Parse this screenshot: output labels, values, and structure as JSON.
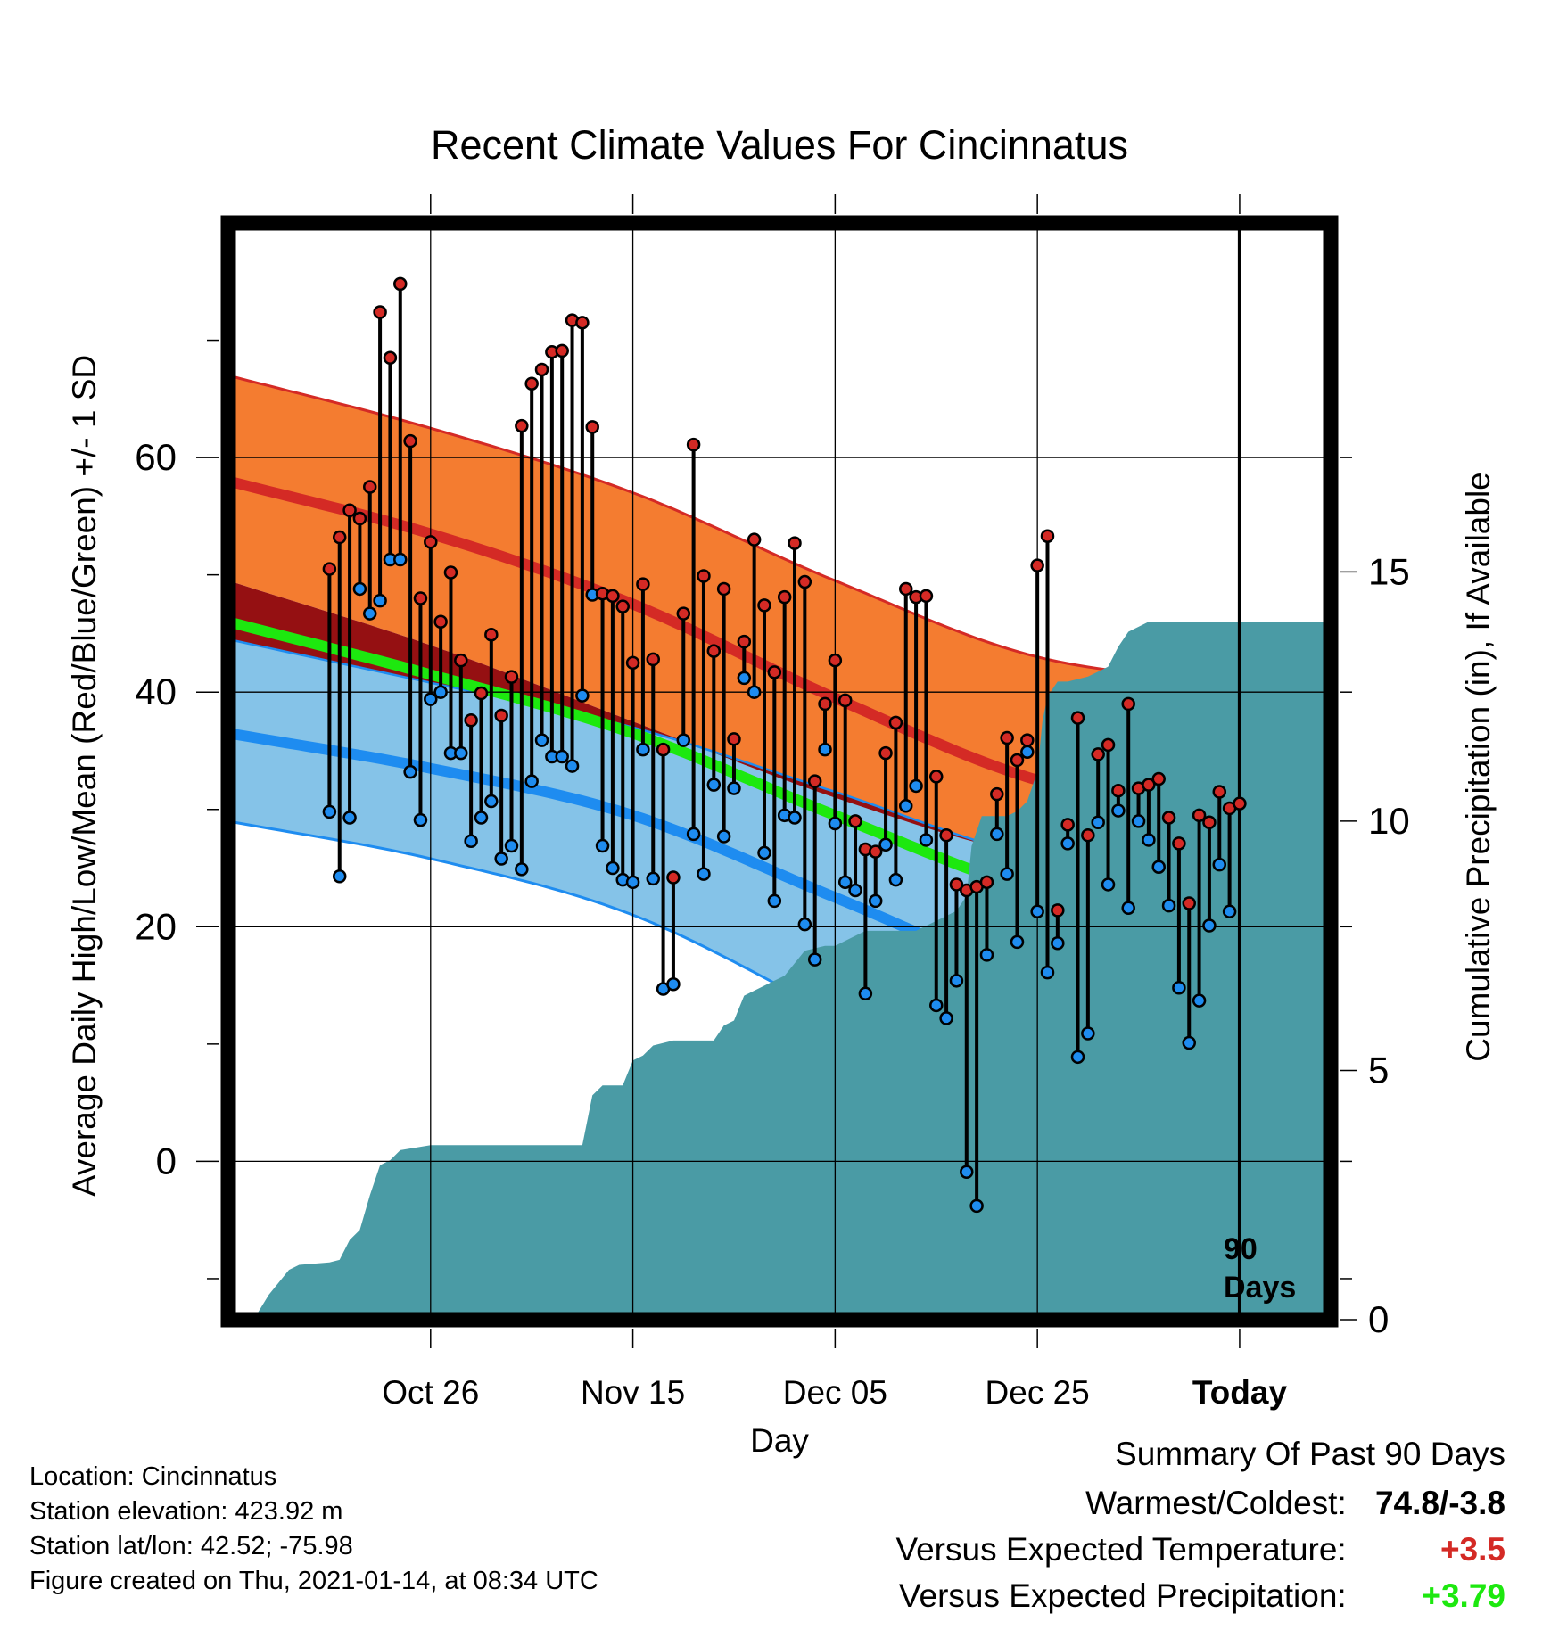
{
  "title": "Recent Climate Values For Cincinnatus",
  "xlabel": "Day",
  "ylabel_left": "Average Daily High/Low/Mean (Red/Blue/Green) +/- 1 SD",
  "ylabel_right": "Cumulative Precipitation (in), If Available",
  "today_marker": {
    "line1": "90",
    "line2": "Days"
  },
  "footer": {
    "location": "Location: Cincinnatus",
    "elevation": "Station elevation: 423.92 m",
    "latlon": "Station lat/lon: 42.52; -75.98",
    "created": "Figure created on Thu, 2021-01-14, at 08:34 UTC"
  },
  "summary": {
    "heading": "Summary Of Past 90 Days",
    "warm_cold_label": "Warmest/Coldest:",
    "warm_cold_value": "74.8/-3.8",
    "temp_label": "Versus Expected Temperature:",
    "temp_value": "+3.5",
    "precip_label": "Versus Expected Precipitation:",
    "precip_value": "+3.79"
  },
  "colors": {
    "high_band": "#f47c30",
    "high_line": "#d42a25",
    "low_band": "#85c3e8",
    "low_line": "#1e8cf0",
    "mean_line": "#1de80f",
    "overlap": "#951012",
    "precip": "#4a9ba5",
    "obs_high": "#d42a25",
    "obs_low": "#1e8cf0"
  },
  "chart_data": {
    "type": "line",
    "x_unit": "day index (0 = Oct 16, 90 = today Jan 14)",
    "xlim": [
      -10,
      99
    ],
    "ylim": [
      -13.5,
      80
    ],
    "ylim_right": [
      0,
      22
    ],
    "x_ticks": [
      {
        "day": 10,
        "label": "Oct 26"
      },
      {
        "day": 30,
        "label": "Nov 15"
      },
      {
        "day": 50,
        "label": "Dec 05"
      },
      {
        "day": 70,
        "label": "Dec 25"
      },
      {
        "day": 90,
        "label": "Today"
      }
    ],
    "y_ticks_left": [
      0,
      20,
      40,
      60
    ],
    "y_ticks_right": [
      0,
      5,
      10,
      15
    ],
    "grid": true,
    "normals": {
      "days": [
        -10,
        10,
        30,
        50,
        70,
        90,
        99
      ],
      "high_upper": [
        67,
        62.5,
        57,
        49.5,
        43,
        41,
        41.3
      ],
      "high_mean": [
        58,
        53.5,
        47.5,
        39.5,
        32.5,
        29.5,
        30
      ],
      "high_lower": [
        49.5,
        44,
        37.5,
        31,
        26,
        24.7,
        24.6
      ],
      "mean_mean": [
        46,
        41.5,
        36.5,
        29.5,
        23,
        19.8,
        19.8
      ],
      "low_upper": [
        44.5,
        40.8,
        37,
        31.5,
        26,
        24.8,
        24.8
      ],
      "low_mean": [
        36.5,
        33.5,
        29.5,
        22.5,
        15.5,
        11.7,
        11.7
      ],
      "low_lower": [
        29,
        25.8,
        21,
        12.5,
        3.5,
        -2,
        -2
      ]
    },
    "series": [
      {
        "name": "High",
        "values": [
          50.5,
          53.2,
          55.5,
          54.8,
          57.5,
          72.4,
          68.5,
          74.8,
          61.4,
          48,
          52.8,
          46,
          50.2,
          42.7,
          37.6,
          39.9,
          44.9,
          38,
          41.3,
          62.7,
          66.3,
          67.5,
          69,
          69.1,
          71.7,
          71.5,
          62.6,
          48.4,
          48.2,
          47.3,
          42.5,
          49.2,
          42.8,
          35.1,
          24.2,
          46.7,
          61.1,
          49.9,
          43.5,
          48.8,
          36,
          44.3,
          53,
          47.4,
          41.7,
          48.1,
          52.7,
          49.4,
          32.4,
          39,
          42.7,
          39.3,
          29,
          26.6,
          26.4,
          34.8,
          37.4,
          48.8,
          48.1,
          48.2,
          32.8,
          27.8,
          23.6,
          23.1,
          23.4,
          23.8,
          31.3,
          36.1,
          34.2,
          35.9,
          50.8,
          53.3,
          21.4,
          28.7,
          37.8,
          27.8,
          34.7,
          35.5,
          31.6,
          39,
          31.8,
          32.1,
          32.6,
          29.3,
          27.1,
          22,
          29.5,
          28.9,
          31.5,
          30.1,
          30.5
        ]
      },
      {
        "name": "Low",
        "values": [
          29.8,
          24.3,
          29.3,
          48.8,
          46.7,
          47.8,
          51.3,
          51.3,
          33.2,
          29.1,
          39.4,
          40,
          34.8,
          34.8,
          27.3,
          29.3,
          30.7,
          25.8,
          26.9,
          24.9,
          32.4,
          35.9,
          34.5,
          34.5,
          33.7,
          39.7,
          48.3,
          26.9,
          25,
          24,
          23.8,
          35.1,
          24.1,
          14.7,
          15.1,
          35.9,
          27.9,
          24.5,
          32.1,
          27.7,
          31.8,
          41.2,
          40,
          26.3,
          22.2,
          29.5,
          29.3,
          20.2,
          17.2,
          35.1,
          28.8,
          23.8,
          23.1,
          14.3,
          22.2,
          27,
          24,
          30.3,
          32,
          27.4,
          13.3,
          12.2,
          15.4,
          -0.9,
          -3.8,
          17.6,
          27.9,
          24.5,
          18.7,
          34.9,
          21.3,
          16.1,
          18.6,
          27.1,
          8.9,
          10.9,
          28.9,
          23.6,
          29.9,
          21.6,
          29,
          27.4,
          25.1,
          21.8,
          14.8,
          10.1,
          13.7,
          20.1,
          25.3,
          21.3
        ]
      },
      {
        "name": "Cumulative Precipitation",
        "x": [
          -7.5,
          -6,
          -4,
          -3,
          0,
          1,
          2,
          3,
          4,
          5,
          6,
          7,
          10,
          12,
          13,
          15,
          20,
          25,
          26,
          27,
          29,
          30,
          31,
          32,
          34,
          37,
          38,
          39,
          40,
          41,
          43,
          44,
          45,
          47,
          49,
          50,
          51,
          52,
          53,
          55,
          58,
          59,
          60,
          61,
          62,
          63,
          63.5,
          64,
          64.5,
          67,
          68,
          69,
          70,
          70.5,
          71,
          72,
          73,
          75,
          76,
          77,
          78,
          79,
          80,
          81,
          84,
          87,
          91,
          99
        ],
        "values": [
          0,
          0.5,
          1.0,
          1.1,
          1.15,
          1.2,
          1.6,
          1.8,
          2.5,
          3.1,
          3.2,
          3.4,
          3.5,
          3.5,
          3.5,
          3.5,
          3.5,
          3.5,
          4.5,
          4.7,
          4.7,
          5.2,
          5.3,
          5.5,
          5.6,
          5.6,
          5.6,
          5.9,
          6.0,
          6.5,
          6.7,
          6.8,
          6.9,
          7.4,
          7.5,
          7.5,
          7.6,
          7.7,
          7.8,
          7.8,
          7.8,
          7.9,
          8.0,
          8.1,
          8.2,
          8.5,
          9.5,
          9.8,
          10.1,
          10.1,
          10.2,
          10.4,
          11.0,
          12.0,
          12.5,
          12.8,
          12.8,
          12.9,
          13.0,
          13.1,
          13.5,
          13.8,
          13.9,
          14.0,
          14.0,
          14.0,
          14.0,
          14.0
        ]
      }
    ]
  }
}
